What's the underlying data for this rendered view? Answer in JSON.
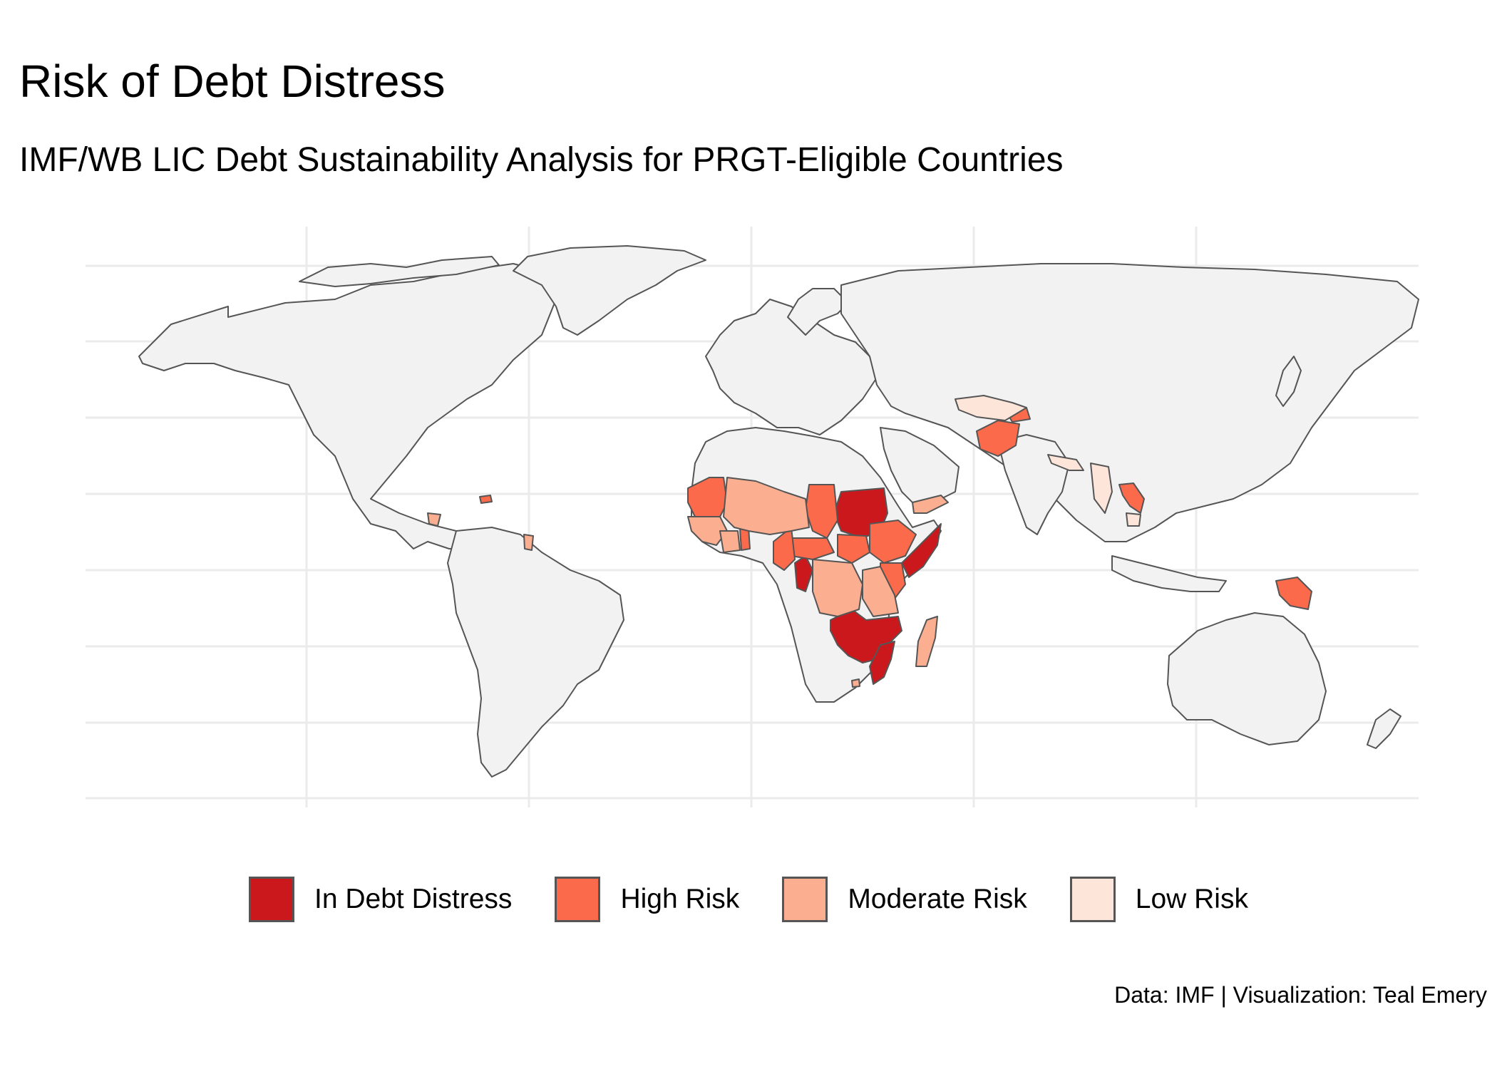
{
  "title": "Risk of Debt Distress",
  "subtitle": "IMF/WB LIC Debt Sustainability Analysis for PRGT-Eligible Countries",
  "caption": "Data: IMF | Visualization: Teal Emery",
  "colors": {
    "background_land": "#f2f2f2",
    "in_debt_distress": "#cb181d",
    "high_risk": "#fb6a4a",
    "moderate_risk": "#fcae91",
    "low_risk": "#fee5d9",
    "grid": "#ebebeb"
  },
  "legend": [
    {
      "key": "in_debt_distress",
      "label": "In Debt Distress"
    },
    {
      "key": "high_risk",
      "label": "High Risk"
    },
    {
      "key": "moderate_risk",
      "label": "Moderate Risk"
    },
    {
      "key": "low_risk",
      "label": "Low Risk"
    }
  ],
  "chart_data": {
    "type": "choropleth",
    "title": "Risk of Debt Distress",
    "subtitle": "IMF/WB LIC Debt Sustainability Analysis for PRGT-Eligible Countries",
    "categories": [
      "In Debt Distress",
      "High Risk",
      "Moderate Risk",
      "Low Risk"
    ],
    "regions": [
      {
        "name": "Sudan",
        "risk": "In Debt Distress"
      },
      {
        "name": "Somalia",
        "risk": "In Debt Distress"
      },
      {
        "name": "Republic of Congo",
        "risk": "In Debt Distress"
      },
      {
        "name": "Zambia",
        "risk": "In Debt Distress"
      },
      {
        "name": "Zimbabwe",
        "risk": "In Debt Distress"
      },
      {
        "name": "Malawi",
        "risk": "In Debt Distress"
      },
      {
        "name": "Mozambique",
        "risk": "In Debt Distress"
      },
      {
        "name": "Mauritania",
        "risk": "High Risk"
      },
      {
        "name": "Ghana",
        "risk": "High Risk"
      },
      {
        "name": "Chad",
        "risk": "High Risk"
      },
      {
        "name": "Central African Republic",
        "risk": "High Risk"
      },
      {
        "name": "South Sudan",
        "risk": "High Risk"
      },
      {
        "name": "Ethiopia",
        "risk": "High Risk"
      },
      {
        "name": "Cameroon",
        "risk": "High Risk"
      },
      {
        "name": "Kenya",
        "risk": "High Risk"
      },
      {
        "name": "Djibouti",
        "risk": "High Risk"
      },
      {
        "name": "Afghanistan",
        "risk": "High Risk"
      },
      {
        "name": "Tajikistan",
        "risk": "High Risk"
      },
      {
        "name": "Laos",
        "risk": "High Risk"
      },
      {
        "name": "Papua New Guinea",
        "risk": "High Risk"
      },
      {
        "name": "Haiti",
        "risk": "High Risk"
      },
      {
        "name": "Mali",
        "risk": "Moderate Risk"
      },
      {
        "name": "Niger",
        "risk": "Moderate Risk"
      },
      {
        "name": "Burkina Faso",
        "risk": "Moderate Risk"
      },
      {
        "name": "Guinea",
        "risk": "Moderate Risk"
      },
      {
        "name": "Senegal",
        "risk": "Moderate Risk"
      },
      {
        "name": "Cote d'Ivoire",
        "risk": "Moderate Risk"
      },
      {
        "name": "Liberia",
        "risk": "Moderate Risk"
      },
      {
        "name": "Benin",
        "risk": "Moderate Risk"
      },
      {
        "name": "Togo",
        "risk": "Moderate Risk"
      },
      {
        "name": "DR Congo",
        "risk": "Moderate Risk"
      },
      {
        "name": "Tanzania",
        "risk": "Moderate Risk"
      },
      {
        "name": "Uganda",
        "risk": "Moderate Risk"
      },
      {
        "name": "Rwanda",
        "risk": "Moderate Risk"
      },
      {
        "name": "Madagascar",
        "risk": "Moderate Risk"
      },
      {
        "name": "Yemen",
        "risk": "Moderate Risk"
      },
      {
        "name": "Lesotho",
        "risk": "Moderate Risk"
      },
      {
        "name": "Nicaragua",
        "risk": "Moderate Risk"
      },
      {
        "name": "Guyana",
        "risk": "Moderate Risk"
      },
      {
        "name": "Myanmar",
        "risk": "Low Risk"
      },
      {
        "name": "Cambodia",
        "risk": "Low Risk"
      },
      {
        "name": "Uzbekistan",
        "risk": "Low Risk"
      },
      {
        "name": "Kyrgyzstan",
        "risk": "Low Risk"
      },
      {
        "name": "Nepal",
        "risk": "Low Risk"
      },
      {
        "name": "Bangladesh",
        "risk": "Low Risk"
      }
    ],
    "legend_position": "bottom"
  }
}
